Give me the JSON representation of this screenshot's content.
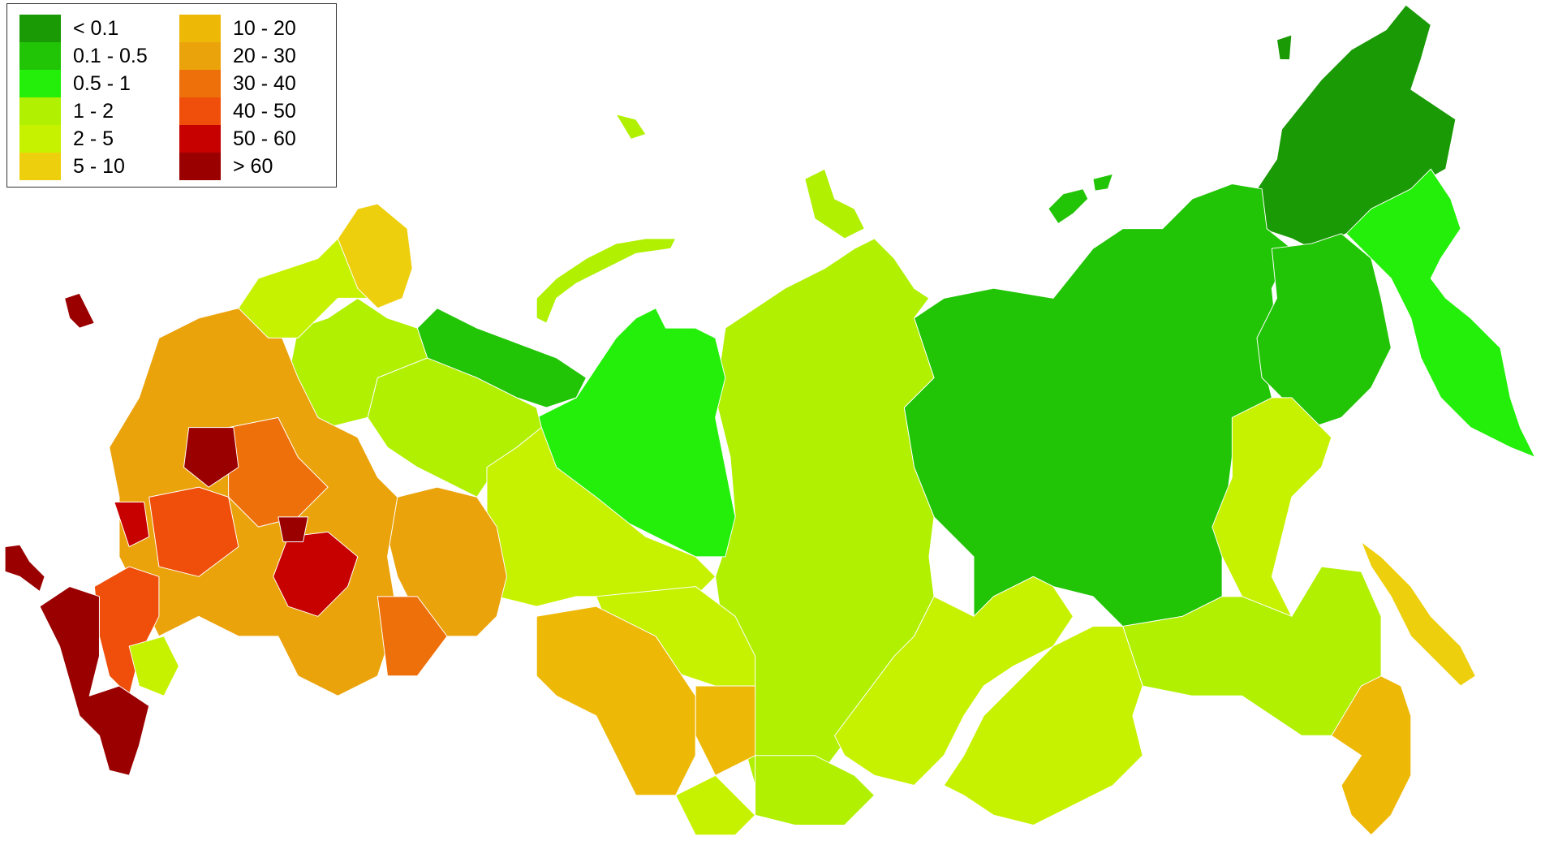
{
  "legend": {
    "items": [
      {
        "label": "< 0.1",
        "color": "#1a9a05"
      },
      {
        "label": "0.1 - 0.5",
        "color": "#22c406"
      },
      {
        "label": "0.5 - 1",
        "color": "#24ef0a"
      },
      {
        "label": "1 - 2",
        "color": "#b0f000"
      },
      {
        "label": "2 - 5",
        "color": "#c6f200"
      },
      {
        "label": "5 - 10",
        "color": "#eecf0d"
      },
      {
        "label": "10 - 20",
        "color": "#eeb806"
      },
      {
        "label": "20 - 30",
        "color": "#eba30c"
      },
      {
        "label": "30 - 40",
        "color": "#ee700a"
      },
      {
        "label": "40 - 50",
        "color": "#ef4f0a"
      },
      {
        "label": "50 - 60",
        "color": "#c70000"
      },
      {
        "label": "> 60",
        "color": "#9a0000"
      }
    ]
  }
}
